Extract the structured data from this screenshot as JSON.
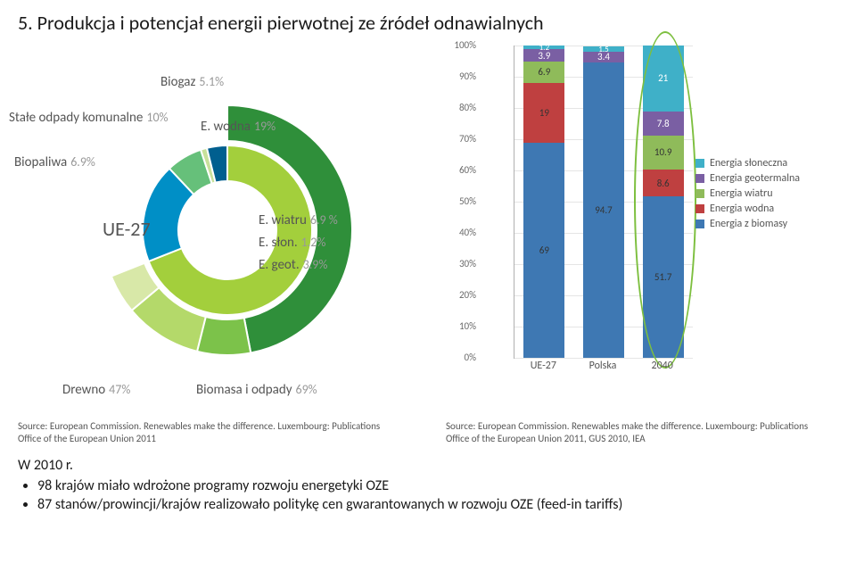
{
  "title": "5. Produkcja i potencjał energii pierwotnej ze źródeł odnawialnych",
  "donut": {
    "center_label": "UE-27",
    "labels": {
      "biogaz": {
        "name": "Biogaz",
        "value": "5.1%"
      },
      "odpady": {
        "name": "Stałe odpady komunalne",
        "value": "10%"
      },
      "biopaliwa": {
        "name": "Biopaliwa",
        "value": "6.9%"
      },
      "wodna": {
        "name": "E. wodna",
        "value": "19%"
      },
      "wiatru": {
        "name": "E. wiatru",
        "value": "6.9 %"
      },
      "slon": {
        "name": "E. słon.",
        "value": "1.2%"
      },
      "geot": {
        "name": "E. geot.",
        "value": "3.9%"
      },
      "drewno": {
        "name": "Drewno",
        "value": "47%"
      },
      "biomasa": {
        "name": "Biomasa i odpady",
        "value": "69%"
      }
    },
    "colors": {
      "inner_biomasa": "#a3cf3c",
      "inner_wodna": "#008fc6",
      "inner_wiatru": "#66c07a",
      "inner_slon": "#c8e09a",
      "inner_geot": "#005f8f",
      "mid_drewno": "#2f8f3a",
      "mid_biopaliwa": "#7cc24a",
      "mid_odpady": "#b4d96a",
      "mid_biogaz": "#d8e8a8"
    }
  },
  "stacked": {
    "ylim": [
      0,
      100
    ],
    "ytick_step": 10,
    "yticks": [
      "0%",
      "10%",
      "20%",
      "30%",
      "40%",
      "50%",
      "60%",
      "70%",
      "80%",
      "90%",
      "100%"
    ],
    "categories": [
      "UE-27",
      "Polska",
      "2040"
    ],
    "series": [
      {
        "key": "biomasa",
        "label": "Energia z biomasy",
        "color": "#3e78b3"
      },
      {
        "key": "wodna",
        "label": "Energia wodna",
        "color": "#bf4040"
      },
      {
        "key": "wiatru",
        "label": "Energia wiatru",
        "color": "#8fbb5a"
      },
      {
        "key": "geot",
        "label": "Energia geotermalna",
        "color": "#7a5fa3"
      },
      {
        "key": "slon",
        "label": "Energia słoneczna",
        "color": "#3fb0c8"
      }
    ],
    "data": {
      "UE-27": {
        "biomasa": 69,
        "wodna": 19,
        "wiatru": 6.9,
        "geot": 3.9,
        "slon": 1.2
      },
      "Polska": {
        "biomasa": 94.7,
        "wodna": 0,
        "wiatru": 0,
        "geot": 3.4,
        "slon": 1.5,
        "hide": [
          "wodna",
          "wiatru"
        ]
      },
      "2040": {
        "biomasa": 51.7,
        "wodna": 8.6,
        "wiatru": 10.9,
        "geot": 7.8,
        "slon": 21
      }
    },
    "ellipse_on": "2040",
    "ellipse_color": "#7dbf3f"
  },
  "sources": {
    "left": "Source: European Commission. Renewables make the difference. Luxembourg: Publications Office of the European Union 2011",
    "right": "Source: European Commission. Renewables make the difference. Luxembourg: Publications Office of the European Union 2011, GUS 2010, IEA"
  },
  "bottom": {
    "heading": "W 2010 r.",
    "b1": "98 krajów miało wdrożone programy rozwoju energetyki OZE",
    "b2": "87 stanów/prowincji/krajów realizowało politykę cen gwarantowanych w rozwoju OZE (feed-in tariffs)"
  }
}
